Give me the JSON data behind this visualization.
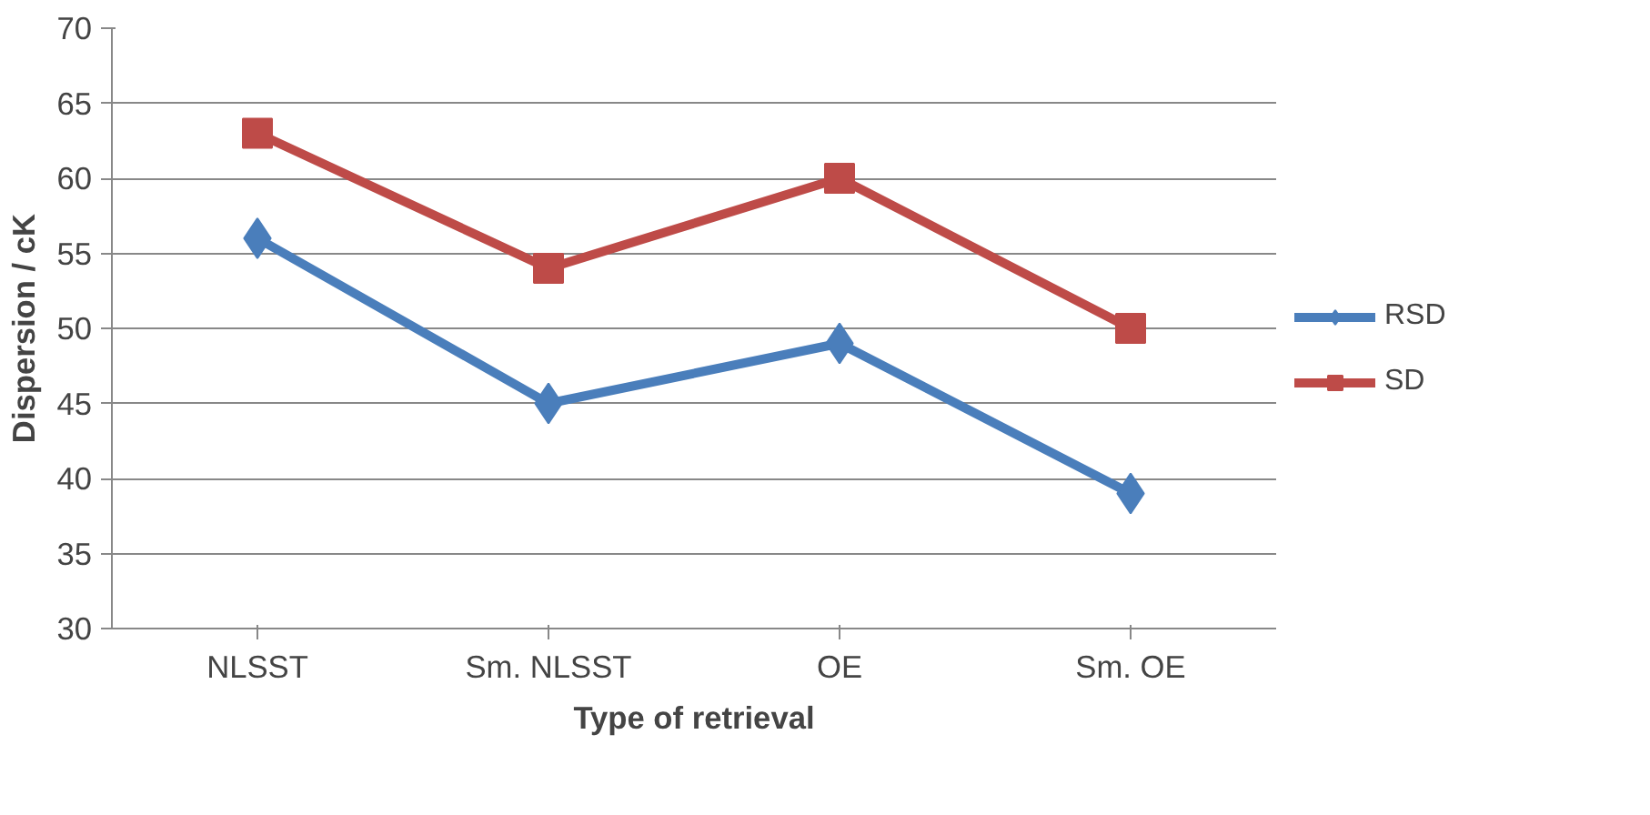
{
  "chart_data": {
    "type": "line",
    "xlabel": "Type of retrieval",
    "ylabel": "Dispersion / cK",
    "categories": [
      "NLSST",
      "Sm. NLSST",
      "OE",
      "Sm. OE"
    ],
    "series": [
      {
        "name": "RSD",
        "color": "#4a7ebb",
        "marker": "diamond",
        "values": [
          56,
          45,
          49,
          39
        ]
      },
      {
        "name": "SD",
        "color": "#be4b48",
        "marker": "square",
        "values": [
          63,
          54,
          60,
          50
        ]
      }
    ],
    "ylim": [
      30,
      70
    ],
    "yticks": [
      30,
      35,
      40,
      45,
      50,
      55,
      60,
      65,
      70
    ],
    "grid": "y",
    "legend": "right",
    "line_style": "solid"
  }
}
